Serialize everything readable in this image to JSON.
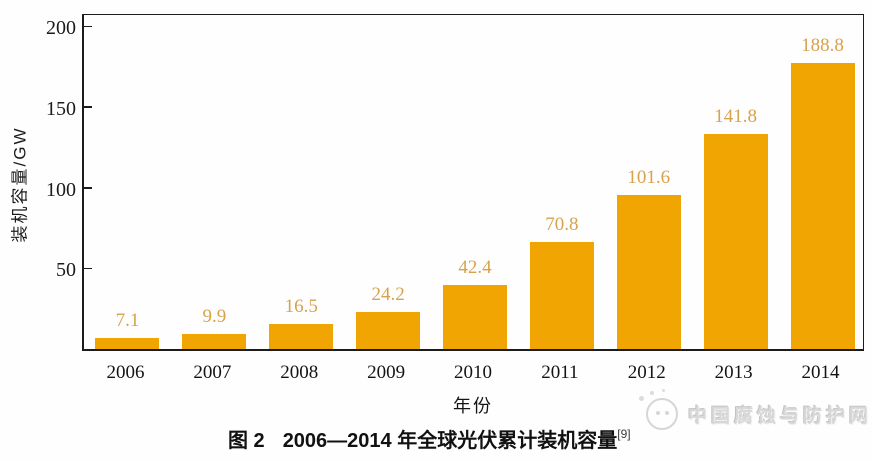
{
  "chart_data": {
    "type": "bar",
    "categories": [
      "2006",
      "2007",
      "2008",
      "2009",
      "2010",
      "2011",
      "2012",
      "2013",
      "2014"
    ],
    "values": [
      7.1,
      9.9,
      16.5,
      24.2,
      42.4,
      70.8,
      101.6,
      141.8,
      188.8
    ],
    "title": "图 2  2006—2014 年全球光伏累计装机容量",
    "xlabel": "年份",
    "ylabel": "装机容量/GW",
    "ylim": [
      0,
      210
    ],
    "yticks": [
      50,
      100,
      150,
      200
    ],
    "grid": false,
    "legend": "none",
    "colors": {
      "bar": "#F1A503",
      "value_label": "#D8A24C",
      "axis": "#1c1c1c"
    }
  },
  "caption": {
    "prefix": "图 2",
    "text": "2006—2014 年全球光伏累计装机容量",
    "reference": "[9]"
  },
  "axes": {
    "y_title": "装机容量/GW",
    "x_title": "年份"
  },
  "watermark": {
    "text": "中国腐蚀与防护网"
  }
}
